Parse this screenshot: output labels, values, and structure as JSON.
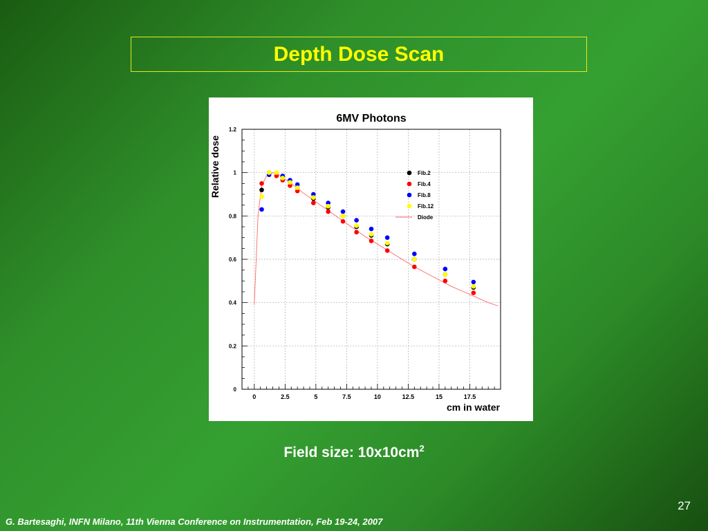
{
  "slide": {
    "title": "Depth Dose Scan",
    "caption_prefix": "Field size: 10x10cm",
    "caption_sup": "2",
    "page_number": "27",
    "footer": "G. Bartesaghi, INFN Milano, 11th Vienna Conference on Instrumentation, Feb 19-24, 2007"
  },
  "colors": {
    "title": "#ffff00",
    "fib2": "#000000",
    "fib4": "#ff0000",
    "fib8": "#0000ff",
    "fib12": "#ffff00",
    "diode": "#ff6666"
  },
  "chart_data": {
    "type": "scatter",
    "title": "6MV Photons",
    "xlabel": "cm in water",
    "ylabel": "Relative dose",
    "xlim": [
      -1,
      20
    ],
    "ylim": [
      0,
      1.2
    ],
    "x_ticks": [
      0,
      2.5,
      5,
      7.5,
      10,
      12.5,
      15,
      17.5
    ],
    "x_tick_labels": [
      "0",
      "2.5",
      "5",
      "7.5",
      "10",
      "12.5",
      "15",
      "17.5"
    ],
    "y_ticks": [
      0,
      0.2,
      0.4,
      0.6,
      0.8,
      1,
      1.2
    ],
    "y_tick_labels": [
      "0",
      "0.2",
      "0.4",
      "0.6",
      "0.8",
      "1",
      "1.2"
    ],
    "grid": true,
    "legend_position": "top-right",
    "series": [
      {
        "name": "Fib.2",
        "color": "#000000",
        "x": [
          0.6,
          1.2,
          2.3,
          2.9,
          3.5,
          4.8,
          6.0,
          7.2,
          8.3,
          9.5,
          10.8,
          13.0,
          15.5,
          17.8
        ],
        "y": [
          0.92,
          1.0,
          0.98,
          0.955,
          0.93,
          0.88,
          0.84,
          0.8,
          0.75,
          0.71,
          0.67,
          0.6,
          0.53,
          0.47
        ]
      },
      {
        "name": "Fib.4",
        "color": "#ff0000",
        "x": [
          0.6,
          1.2,
          1.8,
          2.3,
          2.9,
          3.5,
          4.8,
          6.0,
          7.2,
          8.3,
          9.5,
          10.8,
          13.0,
          15.5,
          17.8
        ],
        "y": [
          0.95,
          1.0,
          0.985,
          0.965,
          0.94,
          0.915,
          0.86,
          0.82,
          0.775,
          0.725,
          0.685,
          0.64,
          0.565,
          0.5,
          0.445
        ]
      },
      {
        "name": "Fib.8",
        "color": "#0000ff",
        "x": [
          0.6,
          1.2,
          2.3,
          2.9,
          3.5,
          4.8,
          6.0,
          7.2,
          8.3,
          9.5,
          10.8,
          13.0,
          15.5,
          17.8
        ],
        "y": [
          0.83,
          0.99,
          0.985,
          0.965,
          0.945,
          0.9,
          0.86,
          0.82,
          0.78,
          0.74,
          0.7,
          0.625,
          0.555,
          0.495
        ]
      },
      {
        "name": "Fib.12",
        "color": "#ffff00",
        "x": [
          0.6,
          1.2,
          1.8,
          2.3,
          2.9,
          3.5,
          4.8,
          6.0,
          7.2,
          8.3,
          9.5,
          10.8,
          13.0,
          15.5,
          17.8
        ],
        "y": [
          0.89,
          1.0,
          1.0,
          0.975,
          0.955,
          0.93,
          0.885,
          0.845,
          0.8,
          0.755,
          0.715,
          0.675,
          0.6,
          0.53,
          0.475
        ]
      },
      {
        "name": "Diode",
        "color": "#ff6666",
        "style": "line",
        "x": [
          0,
          0.3,
          0.6,
          1.0,
          1.5,
          2.0,
          3.0,
          4.0,
          5.0,
          6.0,
          7.0,
          8.0,
          9.0,
          10.0,
          11.0,
          12.0,
          13.0,
          14.0,
          15.0,
          16.0,
          17.0,
          18.0,
          19.0,
          19.8
        ],
        "y": [
          0.39,
          0.8,
          0.94,
          0.985,
          1.0,
          0.99,
          0.95,
          0.905,
          0.865,
          0.825,
          0.785,
          0.745,
          0.705,
          0.67,
          0.635,
          0.6,
          0.565,
          0.535,
          0.505,
          0.475,
          0.45,
          0.425,
          0.4,
          0.385
        ]
      }
    ]
  }
}
